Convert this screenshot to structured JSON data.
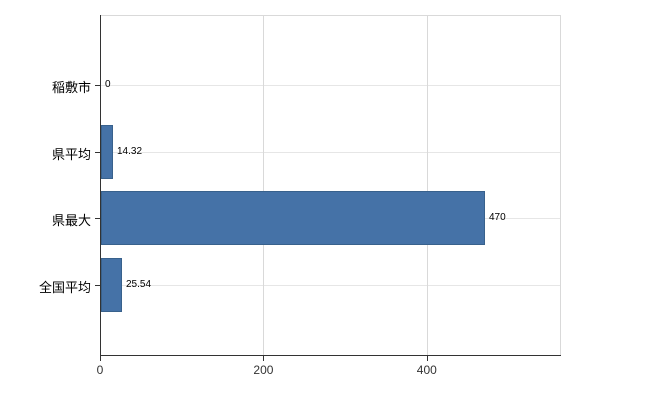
{
  "chart_data": {
    "type": "bar",
    "orientation": "horizontal",
    "title": "",
    "categories": [
      "稲敷市",
      "県平均",
      "県最大",
      "全国平均"
    ],
    "values": [
      0,
      14.32,
      470,
      25.54
    ],
    "value_labels": [
      "0",
      "14.32",
      "470",
      "25.54"
    ],
    "x_ticks": [
      0,
      200,
      400
    ],
    "x_tick_labels": [
      "0",
      "200",
      "400"
    ],
    "xlim": [
      0,
      563
    ],
    "grid": true,
    "legend": "none",
    "bar_color": "#4572a7",
    "bar_border_color": "#38618c",
    "axis_color": "#333333",
    "gridline_color": "#e6e6e6"
  }
}
